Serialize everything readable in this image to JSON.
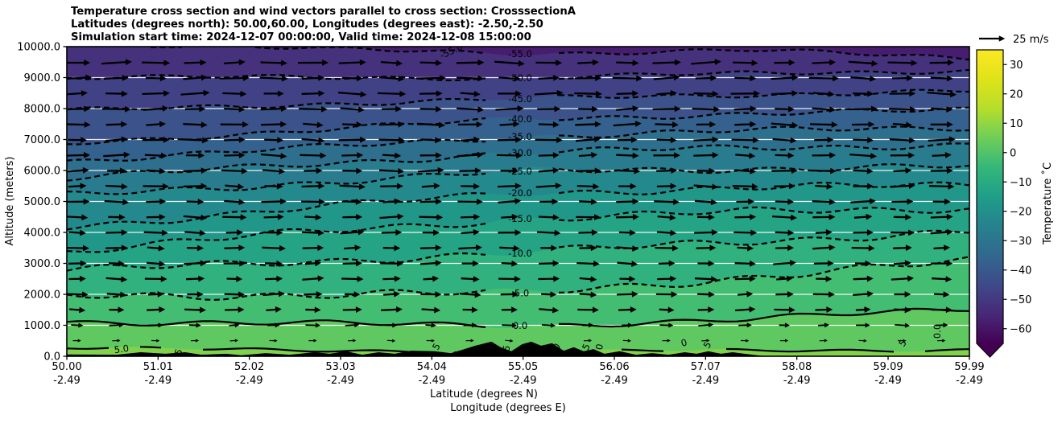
{
  "chart_data": {
    "type": "heatmap",
    "subtype": "temperature-cross-section-contourf-with-quiver",
    "title_lines": [
      "Temperature cross section and wind vectors parallel to cross section: CrosssectionA",
      "Latitudes (degrees north): 50.00,60.00, Longitudes (degrees east): -2.50,-2.50",
      "Simulation start time: 2024-12-07 00:00:00, Valid time: 2024-12-08 15:00:00"
    ],
    "x_axis": {
      "label_line1": "Latitude (degrees N)",
      "label_line2": "Longitude (degrees E)",
      "range_lat": [
        50.0,
        59.99
      ],
      "ticks": [
        {
          "lat": 50.0,
          "label1": "50.00",
          "label2": "-2.49"
        },
        {
          "lat": 51.01,
          "label1": "51.01",
          "label2": "-2.49"
        },
        {
          "lat": 52.02,
          "label1": "52.02",
          "label2": "-2.49"
        },
        {
          "lat": 53.03,
          "label1": "53.03",
          "label2": "-2.49"
        },
        {
          "lat": 54.04,
          "label1": "54.04",
          "label2": "-2.49"
        },
        {
          "lat": 55.05,
          "label1": "55.05",
          "label2": "-2.49"
        },
        {
          "lat": 56.06,
          "label1": "56.06",
          "label2": "-2.49"
        },
        {
          "lat": 57.07,
          "label1": "57.07",
          "label2": "-2.49"
        },
        {
          "lat": 58.08,
          "label1": "58.08",
          "label2": "-2.49"
        },
        {
          "lat": 59.09,
          "label1": "59.09",
          "label2": "-2.49"
        },
        {
          "lat": 59.99,
          "label1": "59.99",
          "label2": "-2.49"
        }
      ]
    },
    "y_axis": {
      "label": "Altitude (meters)",
      "range_m": [
        0,
        10000
      ],
      "ticks": [
        {
          "v": 0,
          "label": "0.0"
        },
        {
          "v": 1000,
          "label": "1000.0"
        },
        {
          "v": 2000,
          "label": "2000.0"
        },
        {
          "v": 3000,
          "label": "3000.0"
        },
        {
          "v": 4000,
          "label": "4000.0"
        },
        {
          "v": 5000,
          "label": "5000.0"
        },
        {
          "v": 6000,
          "label": "6000.0"
        },
        {
          "v": 7000,
          "label": "7000.0"
        },
        {
          "v": 8000,
          "label": "8000.0"
        },
        {
          "v": 9000,
          "label": "9000.0"
        },
        {
          "v": 10000,
          "label": "10000.0"
        }
      ]
    },
    "colorbar": {
      "label": "Temperature ˚C",
      "colormap": "viridis",
      "vmin": -65,
      "vmax": 35,
      "extend": "min",
      "ticks": [
        {
          "v": 30,
          "label": "30"
        },
        {
          "v": 20,
          "label": "20"
        },
        {
          "v": 10,
          "label": "10"
        },
        {
          "v": 0,
          "label": "0"
        },
        {
          "v": -10,
          "label": "−10"
        },
        {
          "v": -20,
          "label": "−20"
        },
        {
          "v": -30,
          "label": "−30"
        },
        {
          "v": -40,
          "label": "−40"
        },
        {
          "v": -50,
          "label": "−50"
        },
        {
          "v": -60,
          "label": "−60"
        }
      ]
    },
    "quiver": {
      "key_label": "25 m/s",
      "direction": "parallel to cross section (pointing toward increasing latitude)",
      "cols": 23,
      "rows": 19
    },
    "contour_interval_c": 5,
    "contours": [
      {
        "v": -55,
        "label": "-55.0",
        "alts": [
          10150,
          9950,
          9770,
          9890,
          9630
        ],
        "amp": 2.0
      },
      {
        "v": -50,
        "label": "-50.0",
        "alts": [
          9010,
          9010,
          8990,
          9130,
          9230
        ],
        "amp": 2.0
      },
      {
        "v": -45,
        "label": "-45.0",
        "alts": [
          7920,
          8130,
          8310,
          8450,
          8570
        ],
        "amp": 2.2
      },
      {
        "v": -40,
        "label": "-40.0",
        "alts": [
          6880,
          7270,
          7660,
          7830,
          7950
        ],
        "amp": 2.4
      },
      {
        "v": -35,
        "label": "-35.0",
        "alts": [
          6310,
          6700,
          7090,
          7280,
          7400
        ],
        "amp": 2.6
      },
      {
        "v": -30,
        "label": "-30.0",
        "alts": [
          5740,
          6180,
          6570,
          6740,
          6830
        ],
        "amp": 2.8
      },
      {
        "v": -25,
        "label": "-25.0",
        "alts": [
          5190,
          5580,
          5970,
          6060,
          6130
        ],
        "amp": 3.0
      },
      {
        "v": -20,
        "label": "-20.0",
        "alts": [
          4180,
          4760,
          5270,
          5440,
          5530
        ],
        "amp": 3.2
      },
      {
        "v": -15,
        "label": "-15.0",
        "alts": [
          3400,
          3970,
          4440,
          4660,
          4800
        ],
        "amp": 3.4
      },
      {
        "v": -10,
        "label": "-10.0",
        "alts": [
          2750,
          3060,
          3320,
          3720,
          4030
        ],
        "amp": 3.6
      },
      {
        "v": -5,
        "label": "-5.0",
        "alts": [
          1950,
          2000,
          2030,
          2550,
          3060
        ],
        "amp": 3.8
      },
      {
        "v": 0,
        "label": "0.0",
        "alts": [
          1120,
          1060,
          990,
          1170,
          1560
        ],
        "amp": 2.6
      },
      {
        "v": 5,
        "label": "5.0",
        "alts": [
          290,
          180,
          160,
          180,
          210
        ],
        "amp": 1.4
      }
    ],
    "contour_anchor_lats": [
      50,
      52.5,
      55,
      57.5,
      60
    ],
    "extra_contour_labels": [
      {
        "text": "-55.0",
        "lat": 54.27,
        "alt": 9766,
        "rot": -25
      },
      {
        "text": "5.0",
        "lat": 50.61,
        "alt": 130,
        "rot": -8
      },
      {
        "text": "5",
        "lat": 51.27,
        "alt": 104,
        "rot": -70
      },
      {
        "text": "5",
        "lat": 54.12,
        "alt": 260,
        "rot": -60
      },
      {
        "text": "5",
        "lat": 54.9,
        "alt": 234,
        "rot": -75
      },
      {
        "text": "5",
        "lat": 55.78,
        "alt": 260,
        "rot": -65
      },
      {
        "text": "5",
        "lat": 57.12,
        "alt": 312,
        "rot": -60
      },
      {
        "text": "5",
        "lat": 59.28,
        "alt": 364,
        "rot": -55
      },
      {
        "text": "0",
        "lat": 55.45,
        "alt": 234,
        "rot": -50
      },
      {
        "text": "0",
        "lat": 55.93,
        "alt": 286,
        "rot": -80
      },
      {
        "text": "0",
        "lat": 56.84,
        "alt": 338,
        "rot": -15
      },
      {
        "text": "0.0",
        "lat": 59.67,
        "alt": 805,
        "rot": -90
      }
    ],
    "terrain_profile_lat_elev_m": [
      [
        50.0,
        60
      ],
      [
        50.55,
        50
      ],
      [
        50.82,
        130
      ],
      [
        51.09,
        80
      ],
      [
        51.31,
        130
      ],
      [
        51.49,
        50
      ],
      [
        51.76,
        80
      ],
      [
        51.93,
        30
      ],
      [
        52.2,
        100
      ],
      [
        52.47,
        50
      ],
      [
        52.74,
        130
      ],
      [
        52.91,
        80
      ],
      [
        53.09,
        160
      ],
      [
        53.27,
        50
      ],
      [
        53.45,
        130
      ],
      [
        53.63,
        80
      ],
      [
        53.81,
        180
      ],
      [
        54.07,
        160
      ],
      [
        54.25,
        100
      ],
      [
        54.38,
        210
      ],
      [
        54.52,
        340
      ],
      [
        54.7,
        470
      ],
      [
        54.8,
        290
      ],
      [
        54.92,
        160
      ],
      [
        55.04,
        390
      ],
      [
        55.14,
        470
      ],
      [
        55.25,
        340
      ],
      [
        55.37,
        420
      ],
      [
        55.5,
        180
      ],
      [
        55.61,
        290
      ],
      [
        55.72,
        160
      ],
      [
        55.83,
        230
      ],
      [
        55.95,
        80
      ],
      [
        56.12,
        160
      ],
      [
        56.3,
        50
      ],
      [
        56.48,
        100
      ],
      [
        56.66,
        50
      ],
      [
        56.84,
        130
      ],
      [
        56.97,
        80
      ],
      [
        57.1,
        160
      ],
      [
        57.24,
        80
      ],
      [
        57.37,
        130
      ],
      [
        57.5,
        80
      ],
      [
        57.64,
        30
      ],
      [
        57.77,
        0
      ],
      [
        59.99,
        0
      ]
    ],
    "styles": {
      "grid_color": "#ffffff",
      "contour_color": "#000000",
      "terrain_color": "#000000",
      "arrow_color": "#000000",
      "viridis_anchors": [
        "#440154",
        "#482878",
        "#3e4a89",
        "#31688e",
        "#26828e",
        "#1f9e89",
        "#35b779",
        "#6ece58",
        "#b5de2b",
        "#dfe318",
        "#fde725"
      ]
    }
  }
}
